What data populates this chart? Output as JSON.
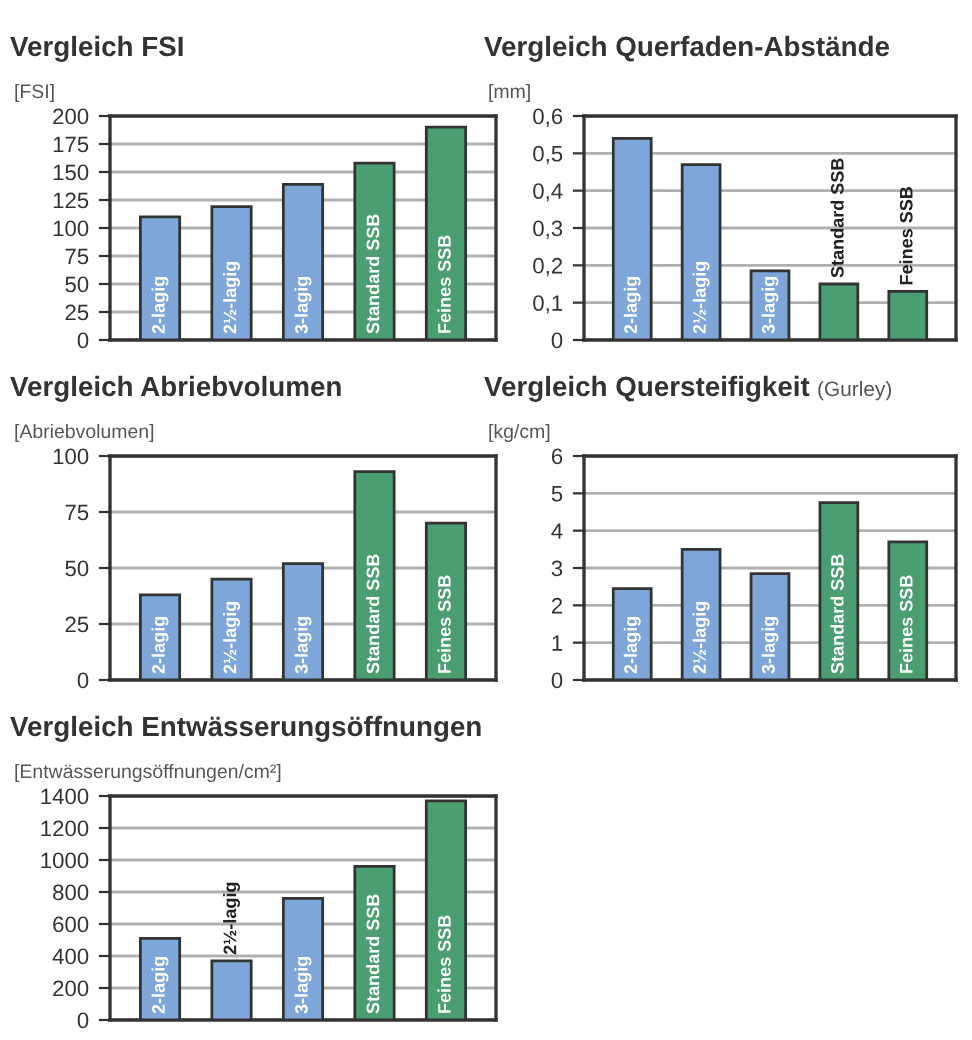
{
  "chart_data": [
    {
      "type": "bar",
      "title": "Vergleich FSI",
      "ylabel": "[FSI]",
      "categories": [
        "2-lagig",
        "2½-lagig",
        "3-lagig",
        "Standard SSB",
        "Feines SSB"
      ],
      "values": [
        110,
        119,
        139,
        158,
        190
      ],
      "colors": [
        "#7ea6d8",
        "#7ea6d8",
        "#7ea6d8",
        "#4b9e72",
        "#4b9e72"
      ],
      "ylim": [
        0,
        200
      ],
      "yticks": [
        0,
        25,
        50,
        75,
        100,
        125,
        150,
        175,
        200
      ],
      "grid": "y",
      "legend": false
    },
    {
      "type": "bar",
      "title": "Vergleich Querfaden-Abstände",
      "ylabel": "[mm]",
      "categories": [
        "2-lagig",
        "2½-lagig",
        "3-lagig",
        "Standard SSB",
        "Feines SSB"
      ],
      "values": [
        0.54,
        0.47,
        0.185,
        0.15,
        0.13
      ],
      "colors": [
        "#7ea6d8",
        "#7ea6d8",
        "#7ea6d8",
        "#4b9e72",
        "#4b9e72"
      ],
      "ylim": [
        0,
        0.6
      ],
      "yticks": [
        {
          "value": 0,
          "label": "0"
        },
        {
          "value": 0.1,
          "label": "0,1"
        },
        {
          "value": 0.2,
          "label": "0,2"
        },
        {
          "value": 0.3,
          "label": "0,3"
        },
        {
          "value": 0.4,
          "label": "0,4"
        },
        {
          "value": 0.5,
          "label": "0,5"
        },
        {
          "value": 0.6,
          "label": "0,6"
        }
      ],
      "grid": "y",
      "legend": false
    },
    {
      "type": "bar",
      "title": "Vergleich Abriebvolumen",
      "ylabel": "[Abriebvolumen]",
      "categories": [
        "2-lagig",
        "2½-lagig",
        "3-lagig",
        "Standard SSB",
        "Feines SSB"
      ],
      "values": [
        38,
        45,
        52,
        93,
        70
      ],
      "colors": [
        "#7ea6d8",
        "#7ea6d8",
        "#7ea6d8",
        "#4b9e72",
        "#4b9e72"
      ],
      "ylim": [
        0,
        100
      ],
      "yticks": [
        0,
        25,
        50,
        75,
        100
      ],
      "grid": "y",
      "legend": false
    },
    {
      "type": "bar",
      "title": "Vergleich Quersteifigkeit",
      "subtitle": "(Gurley)",
      "ylabel": "[kg/cm]",
      "categories": [
        "2-lagig",
        "2½-lagig",
        "3-lagig",
        "Standard SSB",
        "Feines SSB"
      ],
      "values": [
        2.45,
        3.5,
        2.85,
        4.75,
        3.7
      ],
      "colors": [
        "#7ea6d8",
        "#7ea6d8",
        "#7ea6d8",
        "#4b9e72",
        "#4b9e72"
      ],
      "ylim": [
        0,
        6
      ],
      "yticks": [
        0,
        1,
        2,
        3,
        4,
        5,
        6
      ],
      "grid": "y",
      "legend": false
    },
    {
      "type": "bar",
      "title": "Vergleich Entwässerungsöffnungen",
      "ylabel": "[Entwässerungsöffnungen/cm²]",
      "categories": [
        "2-lagig",
        "2½-lagig",
        "3-lagig",
        "Standard SSB",
        "Feines SSB"
      ],
      "values": [
        510,
        370,
        760,
        960,
        1370
      ],
      "colors": [
        "#7ea6d8",
        "#7ea6d8",
        "#7ea6d8",
        "#4b9e72",
        "#4b9e72"
      ],
      "ylim": [
        0,
        1400
      ],
      "yticks": [
        0,
        200,
        400,
        600,
        800,
        1000,
        1200,
        1400
      ],
      "grid": "y",
      "legend": false
    }
  ]
}
